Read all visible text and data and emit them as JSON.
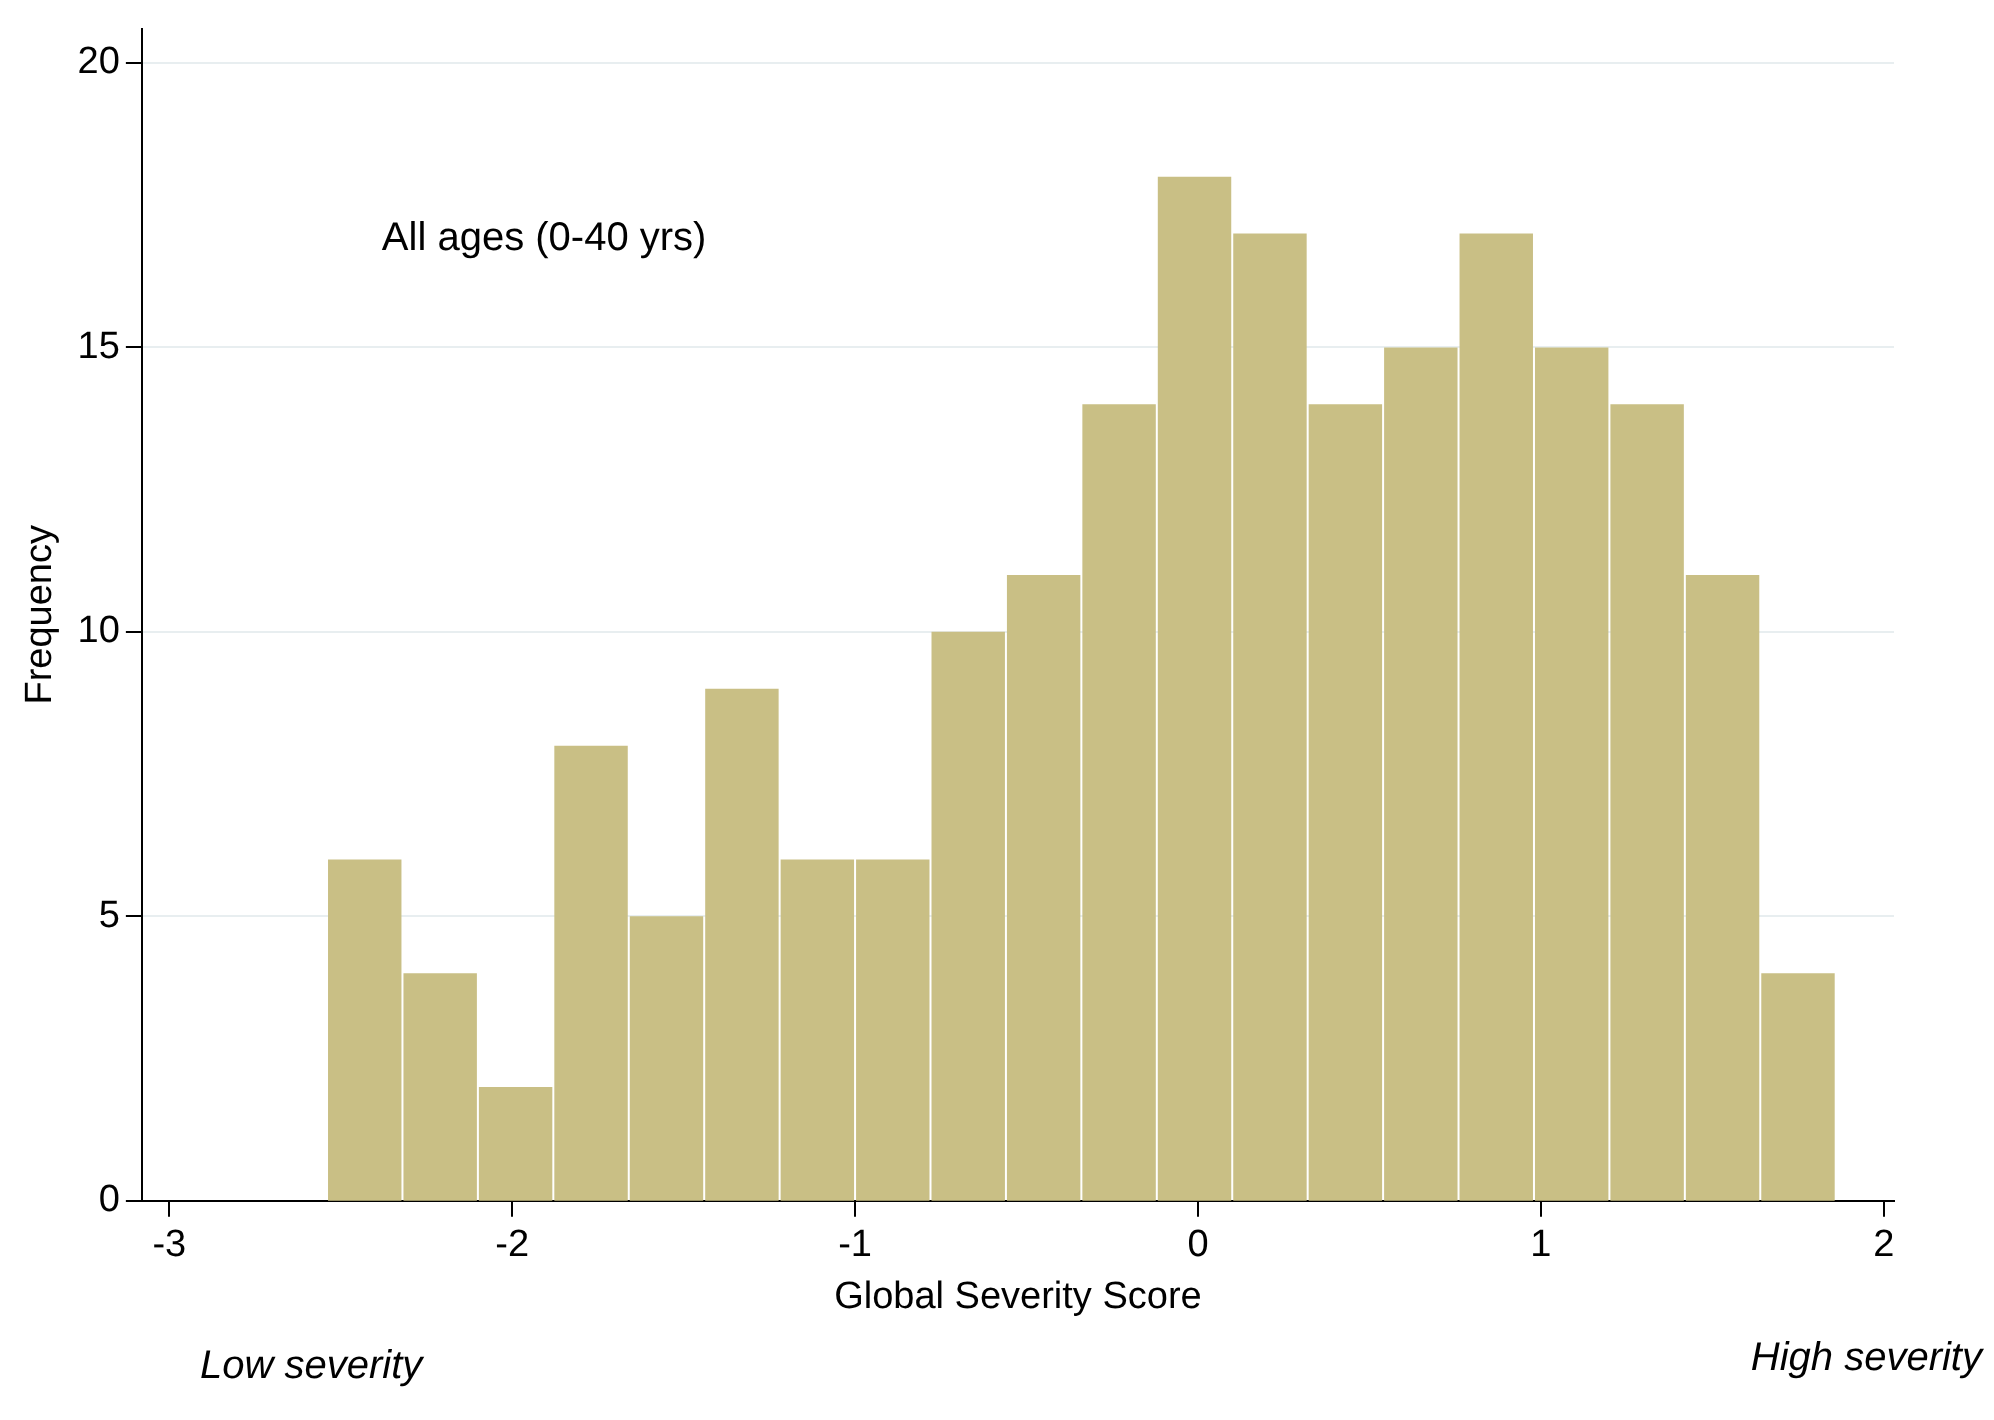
{
  "chart_data": {
    "type": "histogram",
    "xlabel": "Global Severity Score",
    "ylabel": "Frequency",
    "annotations": [
      "All ages (0-40 yrs)",
      "Low severity",
      "High severity"
    ],
    "bins": [
      -2.54,
      -2.32,
      -2.1,
      -1.88,
      -1.66,
      -1.44,
      -1.22,
      -1.0,
      -0.78,
      -0.56,
      -0.34,
      -0.12,
      0.1,
      0.32,
      0.54,
      0.76,
      0.98,
      1.2,
      1.42,
      1.64,
      1.86
    ],
    "values": [
      6,
      4,
      2,
      8,
      5,
      9,
      6,
      6,
      10,
      11,
      14,
      18,
      17,
      14,
      15,
      17,
      15,
      14,
      11,
      4
    ],
    "color": "#c9bf85",
    "xlim": [
      -3.08,
      2.03
    ],
    "xticks": [
      -3,
      -2,
      -1,
      0,
      1,
      2
    ],
    "ylim": [
      0,
      20.6
    ],
    "yticks": [
      0,
      5,
      10,
      15,
      20
    ],
    "grid": "y"
  }
}
